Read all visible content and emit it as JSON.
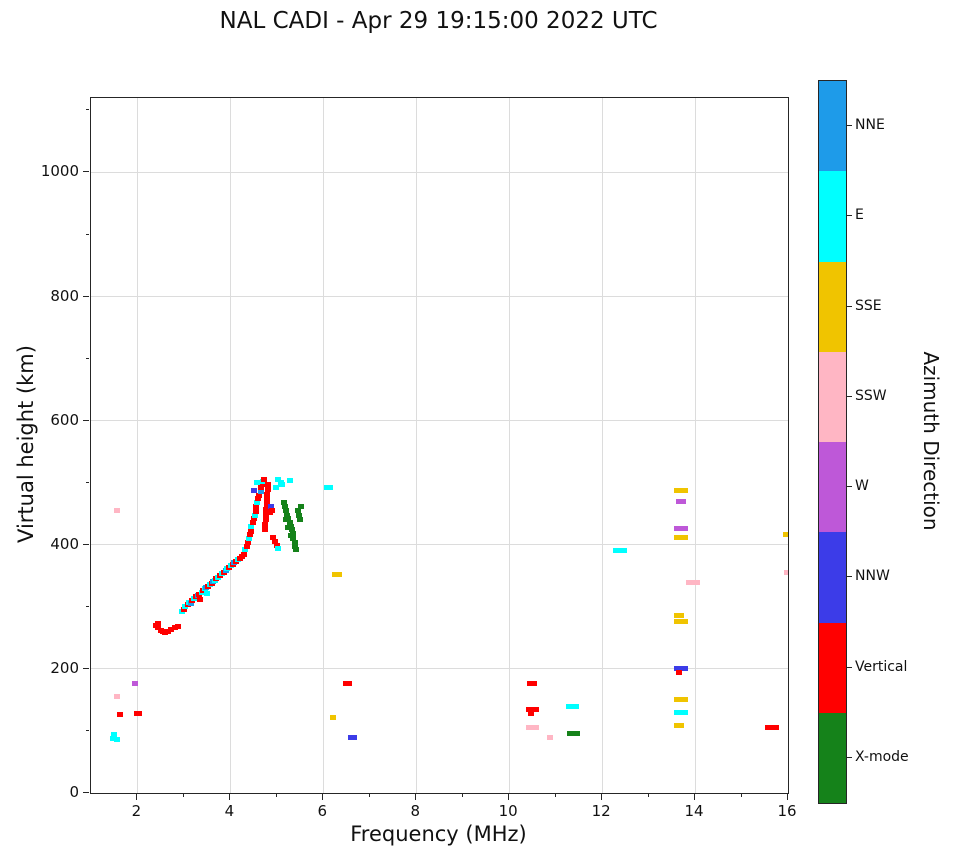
{
  "chart_data": {
    "type": "scatter",
    "title": "NAL CADI - Apr 29 19:15:00 2022 UTC",
    "xlabel": "Frequency (MHz)",
    "ylabel": "Virtual height (km)",
    "xlim": [
      1,
      16
    ],
    "ylim": [
      0,
      1120
    ],
    "xticks": [
      2,
      4,
      6,
      8,
      10,
      12,
      14,
      16
    ],
    "xticks_minor": [
      3,
      5,
      7,
      9,
      11,
      13,
      15
    ],
    "yticks": [
      0,
      200,
      400,
      600,
      800,
      1000
    ],
    "yticks_minor": [
      100,
      300,
      500,
      700,
      900,
      1100
    ],
    "grid": true,
    "legend_position": "right-colorbar",
    "colorbar": {
      "title": "Azimuth Direction",
      "entries": [
        {
          "code": "NNE",
          "label": "NNE",
          "color": "#1E9BE9"
        },
        {
          "code": "E",
          "label": "E",
          "color": "#00FFFF"
        },
        {
          "code": "SSE",
          "label": "SSE",
          "color": "#F0C400"
        },
        {
          "code": "SSW",
          "label": "SSW",
          "color": "#FFB6C4"
        },
        {
          "code": "W",
          "label": "W",
          "color": "#BE58D8"
        },
        {
          "code": "NNW",
          "label": "NNW",
          "color": "#3C3CE8"
        },
        {
          "code": "V",
          "label": "Vertical",
          "color": "#FF0000"
        },
        {
          "code": "X",
          "label": "X-mode",
          "color": "#15821A"
        }
      ]
    },
    "point_categories": {
      "NNE": "#1E9BE9",
      "E": "#00FFFF",
      "SSE": "#F0C400",
      "SSW": "#FFB6C4",
      "W": "#BE58D8",
      "NNW": "#3C3CE8",
      "V": "#FF0000",
      "X": "#15821A"
    },
    "points": [
      [
        2.4,
        270,
        "V"
      ],
      [
        2.45,
        266,
        "V"
      ],
      [
        2.45,
        273,
        "V"
      ],
      [
        2.5,
        262,
        "V"
      ],
      [
        2.55,
        260,
        "V"
      ],
      [
        2.6,
        259,
        "V"
      ],
      [
        2.66,
        261,
        "V"
      ],
      [
        2.72,
        263,
        "V"
      ],
      [
        2.8,
        266,
        "V"
      ],
      [
        2.87,
        268,
        "V"
      ],
      [
        2.95,
        292,
        "E"
      ],
      [
        3.0,
        296,
        "V"
      ],
      [
        3.03,
        300,
        "E"
      ],
      [
        3.08,
        303,
        "V"
      ],
      [
        3.11,
        307,
        "E"
      ],
      [
        3.15,
        305,
        "NNE"
      ],
      [
        3.18,
        310,
        "V"
      ],
      [
        3.22,
        313,
        "E"
      ],
      [
        3.26,
        316,
        "V"
      ],
      [
        3.3,
        318,
        "NNE"
      ],
      [
        3.33,
        320,
        "V"
      ],
      [
        3.35,
        312,
        "V"
      ],
      [
        3.38,
        323,
        "E"
      ],
      [
        3.41,
        326,
        "V"
      ],
      [
        3.45,
        329,
        "E"
      ],
      [
        3.48,
        331,
        "NNE"
      ],
      [
        3.5,
        322,
        "E"
      ],
      [
        3.52,
        333,
        "V"
      ],
      [
        3.56,
        336,
        "E"
      ],
      [
        3.6,
        338,
        "V"
      ],
      [
        3.63,
        341,
        "NNE"
      ],
      [
        3.67,
        343,
        "E"
      ],
      [
        3.7,
        346,
        "V"
      ],
      [
        3.74,
        348,
        "E"
      ],
      [
        3.78,
        351,
        "V"
      ],
      [
        3.82,
        353,
        "E"
      ],
      [
        3.86,
        356,
        "V"
      ],
      [
        3.9,
        358,
        "NNE"
      ],
      [
        3.93,
        361,
        "E"
      ],
      [
        3.97,
        363,
        "V"
      ],
      [
        4.01,
        366,
        "E"
      ],
      [
        4.05,
        368,
        "V"
      ],
      [
        4.08,
        371,
        "NNE"
      ],
      [
        4.12,
        373,
        "V"
      ],
      [
        4.16,
        376,
        "E"
      ],
      [
        4.2,
        378,
        "V"
      ],
      [
        4.25,
        381,
        "V"
      ],
      [
        4.3,
        385,
        "V"
      ],
      [
        4.32,
        392,
        "E"
      ],
      [
        4.35,
        398,
        "V"
      ],
      [
        4.38,
        404,
        "V"
      ],
      [
        4.4,
        410,
        "E"
      ],
      [
        4.42,
        416,
        "V"
      ],
      [
        4.45,
        422,
        "V"
      ],
      [
        4.45,
        430,
        "E"
      ],
      [
        4.48,
        436,
        "V"
      ],
      [
        4.5,
        442,
        "V"
      ],
      [
        4.52,
        448,
        "E"
      ],
      [
        4.55,
        454,
        "V"
      ],
      [
        4.55,
        462,
        "V"
      ],
      [
        4.58,
        468,
        "E"
      ],
      [
        4.6,
        474,
        "V"
      ],
      [
        4.62,
        480,
        "V"
      ],
      [
        4.65,
        486,
        "NNE"
      ],
      [
        4.65,
        492,
        "V"
      ],
      [
        4.68,
        497,
        "V"
      ],
      [
        4.7,
        502,
        "E"
      ],
      [
        4.72,
        505,
        "V"
      ],
      [
        4.58,
        500,
        "E"
      ],
      [
        4.5,
        487,
        "NNW"
      ],
      [
        4.75,
        425,
        "V"
      ],
      [
        4.75,
        433,
        "V"
      ],
      [
        4.76,
        441,
        "V"
      ],
      [
        4.77,
        449,
        "V"
      ],
      [
        4.77,
        457,
        "V"
      ],
      [
        4.78,
        465,
        "V"
      ],
      [
        4.78,
        473,
        "V"
      ],
      [
        4.79,
        481,
        "V"
      ],
      [
        4.8,
        489,
        "V"
      ],
      [
        4.8,
        497,
        "V"
      ],
      [
        4.83,
        460,
        "V"
      ],
      [
        4.85,
        452,
        "V"
      ],
      [
        4.88,
        462,
        "NNW"
      ],
      [
        4.9,
        455,
        "V"
      ],
      [
        4.92,
        412,
        "V"
      ],
      [
        4.96,
        405,
        "V"
      ],
      [
        5.0,
        399,
        "V"
      ],
      [
        5.03,
        394,
        "E"
      ],
      [
        4.98,
        492,
        "E"
      ],
      [
        5.02,
        505,
        "E"
      ],
      [
        5.08,
        500,
        "E"
      ],
      [
        5.12,
        497,
        "E"
      ],
      [
        5.28,
        503,
        "E"
      ],
      [
        5.15,
        468,
        "X"
      ],
      [
        5.18,
        462,
        "X"
      ],
      [
        5.2,
        455,
        "X"
      ],
      [
        5.2,
        440,
        "X"
      ],
      [
        5.22,
        448,
        "X"
      ],
      [
        5.25,
        442,
        "X"
      ],
      [
        5.25,
        428,
        "X"
      ],
      [
        5.28,
        436,
        "X"
      ],
      [
        5.3,
        430,
        "X"
      ],
      [
        5.3,
        415,
        "X"
      ],
      [
        5.32,
        424,
        "X"
      ],
      [
        5.35,
        418,
        "X"
      ],
      [
        5.35,
        410,
        "X"
      ],
      [
        5.38,
        404,
        "X"
      ],
      [
        5.4,
        398,
        "X"
      ],
      [
        5.42,
        392,
        "X"
      ],
      [
        5.45,
        455,
        "X"
      ],
      [
        5.48,
        448,
        "X"
      ],
      [
        5.5,
        440,
        "X"
      ],
      [
        5.52,
        462,
        "X"
      ],
      [
        1.55,
        455,
        "SSW"
      ],
      [
        1.95,
        177,
        "W"
      ],
      [
        1.55,
        155,
        "SSW"
      ],
      [
        1.62,
        127,
        "V"
      ],
      [
        1.98,
        128,
        "V"
      ],
      [
        2.03,
        128,
        "V"
      ],
      [
        1.5,
        95,
        "E"
      ],
      [
        1.48,
        88,
        "E"
      ],
      [
        1.56,
        86,
        "E"
      ],
      [
        6.08,
        492,
        "E"
      ],
      [
        6.15,
        492,
        "E"
      ],
      [
        6.25,
        352,
        "SSE"
      ],
      [
        6.33,
        352,
        "SSE"
      ],
      [
        6.2,
        121,
        "SSE"
      ],
      [
        6.48,
        176,
        "V"
      ],
      [
        6.55,
        176,
        "V"
      ],
      [
        6.6,
        89,
        "NNW"
      ],
      [
        6.67,
        89,
        "NNW"
      ],
      [
        10.45,
        176,
        "V"
      ],
      [
        10.53,
        176,
        "V"
      ],
      [
        10.42,
        134,
        "V"
      ],
      [
        10.5,
        134,
        "V"
      ],
      [
        10.58,
        134,
        "V"
      ],
      [
        10.47,
        128,
        "V"
      ],
      [
        10.42,
        106,
        "SSW"
      ],
      [
        10.5,
        106,
        "SSW"
      ],
      [
        10.58,
        106,
        "SSW"
      ],
      [
        10.88,
        89,
        "SSW"
      ],
      [
        11.28,
        140,
        "E"
      ],
      [
        11.36,
        140,
        "E"
      ],
      [
        11.44,
        140,
        "E"
      ],
      [
        11.3,
        96,
        "X"
      ],
      [
        11.38,
        96,
        "X"
      ],
      [
        11.46,
        96,
        "X"
      ],
      [
        12.3,
        391,
        "E"
      ],
      [
        12.38,
        391,
        "E"
      ],
      [
        12.46,
        391,
        "E"
      ],
      [
        13.62,
        487,
        "SSE"
      ],
      [
        13.7,
        487,
        "SSE"
      ],
      [
        13.78,
        487,
        "SSE"
      ],
      [
        13.66,
        470,
        "W"
      ],
      [
        13.74,
        470,
        "W"
      ],
      [
        13.62,
        426,
        "W"
      ],
      [
        13.7,
        426,
        "W"
      ],
      [
        13.78,
        426,
        "W"
      ],
      [
        13.62,
        412,
        "SSE"
      ],
      [
        13.7,
        412,
        "SSE"
      ],
      [
        13.78,
        412,
        "SSE"
      ],
      [
        13.88,
        340,
        "SSW"
      ],
      [
        13.96,
        340,
        "SSW"
      ],
      [
        14.04,
        340,
        "SSW"
      ],
      [
        13.62,
        286,
        "SSE"
      ],
      [
        13.7,
        286,
        "SSE"
      ],
      [
        13.62,
        277,
        "SSE"
      ],
      [
        13.7,
        277,
        "SSE"
      ],
      [
        13.78,
        277,
        "SSE"
      ],
      [
        13.62,
        200,
        "NNW"
      ],
      [
        13.7,
        200,
        "NNW"
      ],
      [
        13.78,
        200,
        "NNW"
      ],
      [
        13.66,
        194,
        "V"
      ],
      [
        13.62,
        150,
        "SSE"
      ],
      [
        13.7,
        150,
        "SSE"
      ],
      [
        13.78,
        150,
        "SSE"
      ],
      [
        13.62,
        130,
        "E"
      ],
      [
        13.7,
        130,
        "E"
      ],
      [
        13.78,
        130,
        "E"
      ],
      [
        13.62,
        108,
        "SSE"
      ],
      [
        13.7,
        108,
        "SSE"
      ],
      [
        15.58,
        105,
        "V"
      ],
      [
        15.66,
        105,
        "V"
      ],
      [
        15.74,
        105,
        "V"
      ],
      [
        15.95,
        416,
        "SSE"
      ],
      [
        15.97,
        356,
        "SSW"
      ]
    ]
  }
}
